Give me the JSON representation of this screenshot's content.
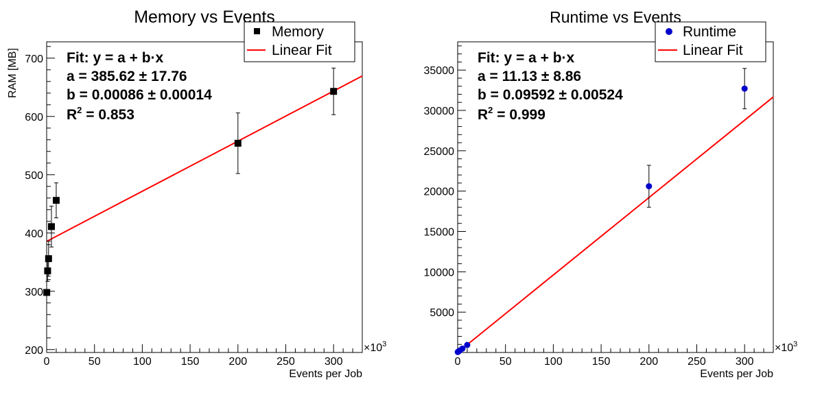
{
  "chart_data": [
    {
      "type": "scatter",
      "title": "Memory vs Events",
      "xlabel": "Events per Job",
      "ylabel": "RAM [MB]",
      "x_multiplier": "×10",
      "x_multiplier_exp": "3",
      "xlim": [
        0,
        330
      ],
      "ylim": [
        195,
        728
      ],
      "x_ticks": [
        0,
        50,
        100,
        150,
        200,
        250,
        300
      ],
      "y_ticks": [
        200,
        300,
        400,
        500,
        600,
        700
      ],
      "series": [
        {
          "name": "Memory",
          "marker": "square",
          "color": "#000000",
          "x": [
            0.1,
            1,
            2,
            5,
            10,
            200,
            300
          ],
          "y": [
            298,
            335,
            356,
            411,
            456,
            554,
            643
          ],
          "err": [
            5,
            18,
            30,
            35,
            30,
            52,
            40
          ]
        }
      ],
      "fit": {
        "name": "Linear Fit",
        "color": "#ff0000",
        "a": 385.62,
        "b": 0.86,
        "x_range": [
          0,
          330
        ]
      },
      "fit_box": {
        "line1": "Fit: y = a + b·x",
        "line2": "a = 385.62 ± 17.76",
        "line3": "b = 0.00086 ± 0.00014",
        "r2_prefix": "R",
        "r2_sup": "2",
        "r2_value": " = 0.853"
      },
      "legend_position": "top-right"
    },
    {
      "type": "scatter",
      "title": "Runtime vs Events",
      "xlabel": "Events per Job",
      "ylabel": "",
      "x_multiplier": "×10",
      "x_multiplier_exp": "3",
      "xlim": [
        0,
        330
      ],
      "ylim": [
        0,
        38500
      ],
      "x_ticks": [
        0,
        50,
        100,
        150,
        200,
        250,
        300
      ],
      "y_ticks": [
        5000,
        10000,
        15000,
        20000,
        25000,
        30000,
        35000
      ],
      "series": [
        {
          "name": "Runtime",
          "marker": "circle",
          "color": "#0000cc",
          "x": [
            0.1,
            1,
            2,
            5,
            10,
            200,
            300
          ],
          "y": [
            60,
            130,
            230,
            480,
            930,
            20600,
            32700
          ],
          "err": [
            0,
            0,
            0,
            0,
            0,
            2600,
            2500
          ]
        }
      ],
      "fit": {
        "name": "Linear Fit",
        "color": "#ff0000",
        "a": 11.13,
        "b": 95.92,
        "x_range": [
          0,
          330
        ]
      },
      "fit_box": {
        "line1": "Fit: y = a + b·x",
        "line2": "a = 11.13 ± 8.86",
        "line3": "b = 0.09592 ± 0.00524",
        "r2_prefix": "R",
        "r2_sup": "2",
        "r2_value": " = 0.999"
      },
      "legend_position": "top-right"
    }
  ]
}
